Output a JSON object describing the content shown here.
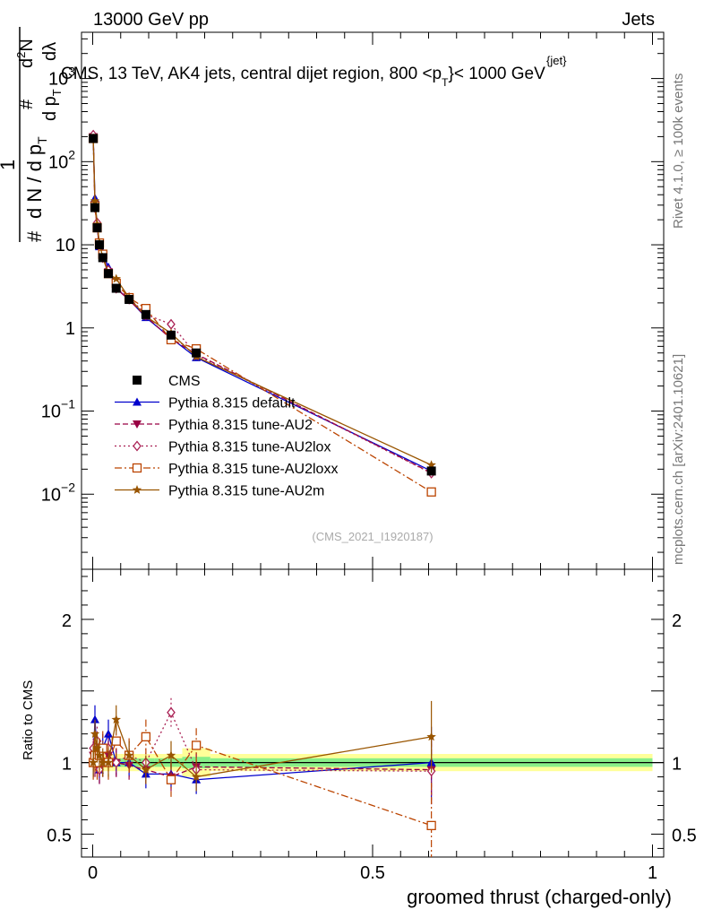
{
  "header": {
    "left": "13000 GeV pp",
    "right": "Jets"
  },
  "side": {
    "rivet": "Rivet 4.1.0, ≥ 100k events",
    "mcplots": "mcplots.cern.ch [arXiv:2401.10621]"
  },
  "chart_data": {
    "type": "line",
    "title_parts": {
      "main": "CMS, 13 TeV, AK4 jets, central dijet region, 800 <p",
      "sub": "T",
      "sup": "{jet}",
      "rest": "}< 1000 GeV"
    },
    "ylabel_parts": [
      "#",
      "1",
      "d N / d p",
      "T",
      "#",
      "d p",
      "T",
      "d",
      "2",
      "N",
      "dλ"
    ],
    "xlabel": "groomed thrust (charged-only)",
    "ratio_ylabel": "Ratio to CMS",
    "watermark": "(CMS_2021_I1920187)",
    "xlim": [
      -0.02,
      1.02
    ],
    "ylim_main": [
      0.00125,
      3600
    ],
    "ylim_ratio": [
      0.34,
      2.35
    ],
    "x_ticks": [
      "0",
      "0.5",
      "1"
    ],
    "y_ticks_main": [
      {
        "base": "10",
        "exp": "−2"
      },
      {
        "base": "10",
        "exp": "−1"
      },
      {
        "base": "1",
        "exp": ""
      },
      {
        "base": "10",
        "exp": ""
      },
      {
        "base": "10",
        "exp": "2"
      },
      {
        "base": "10",
        "exp": "3"
      }
    ],
    "y_ticks_ratio": [
      "0.5",
      "1",
      "2"
    ],
    "x": [
      0.001,
      0.004,
      0.008,
      0.012,
      0.018,
      0.028,
      0.042,
      0.065,
      0.095,
      0.14,
      0.185,
      0.605
    ],
    "band_edges": [
      0.0,
      0.002,
      0.006,
      0.01,
      0.014,
      0.022,
      0.034,
      0.05,
      0.08,
      0.11,
      0.16,
      0.21,
      1.0
    ],
    "band_stat": [
      0.03,
      0.03,
      0.03,
      0.03,
      0.03,
      0.03,
      0.03,
      0.03,
      0.03,
      0.03,
      0.04,
      0.03
    ],
    "band_total": [
      0.06,
      0.06,
      0.06,
      0.06,
      0.06,
      0.06,
      0.06,
      0.06,
      0.06,
      0.06,
      0.1,
      0.06
    ],
    "cms": [
      190,
      28,
      16,
      10,
      7,
      4.5,
      3.0,
      2.2,
      1.45,
      0.82,
      0.5,
      0.019
    ],
    "series": [
      {
        "name": "Pythia 8.315 default",
        "color": "#0000cc",
        "dash": "",
        "marker": "triangle-up",
        "ratio": [
          1.0,
          1.3,
          1.05,
          0.95,
          1.1,
          1.2,
          1.0,
          1.0,
          0.92,
          0.92,
          0.88,
          1.0
        ],
        "ratio_err": 0.1
      },
      {
        "name": "Pythia 8.315 tune-AU2",
        "color": "#990044",
        "dash": "6,3",
        "marker": "triangle-down",
        "ratio": [
          1.05,
          1.0,
          1.0,
          0.95,
          1.0,
          1.05,
          1.0,
          0.98,
          0.95,
          0.9,
          0.97,
          0.95
        ],
        "ratio_err": 0.1
      },
      {
        "name": "Pythia 8.315 tune-AU2lox",
        "color": "#aa2255",
        "dash": "2,3",
        "marker": "diamond-open",
        "ratio": [
          1.1,
          1.0,
          1.15,
          0.95,
          1.0,
          1.1,
          1.0,
          1.05,
          1.0,
          1.35,
          0.95,
          0.94
        ],
        "ratio_err": 0.1
      },
      {
        "name": "Pythia 8.315 tune-AU2loxx",
        "color": "#bb4400",
        "dash": "8,3,2,3",
        "marker": "square-open",
        "ratio": [
          1.0,
          1.05,
          1.0,
          1.05,
          1.1,
          1.0,
          1.15,
          1.05,
          1.18,
          0.88,
          1.12,
          0.56
        ],
        "ratio_err": 0.12
      },
      {
        "name": "Pythia 8.315 tune-AU2m",
        "color": "#995500",
        "dash": "",
        "marker": "star",
        "ratio": [
          1.0,
          1.2,
          1.1,
          1.05,
          1.0,
          1.0,
          1.3,
          1.05,
          0.95,
          1.05,
          0.9,
          1.18
        ],
        "ratio_err": 0.1
      }
    ],
    "legend": {
      "cms_label": "CMS",
      "placement": "lower-left"
    }
  }
}
